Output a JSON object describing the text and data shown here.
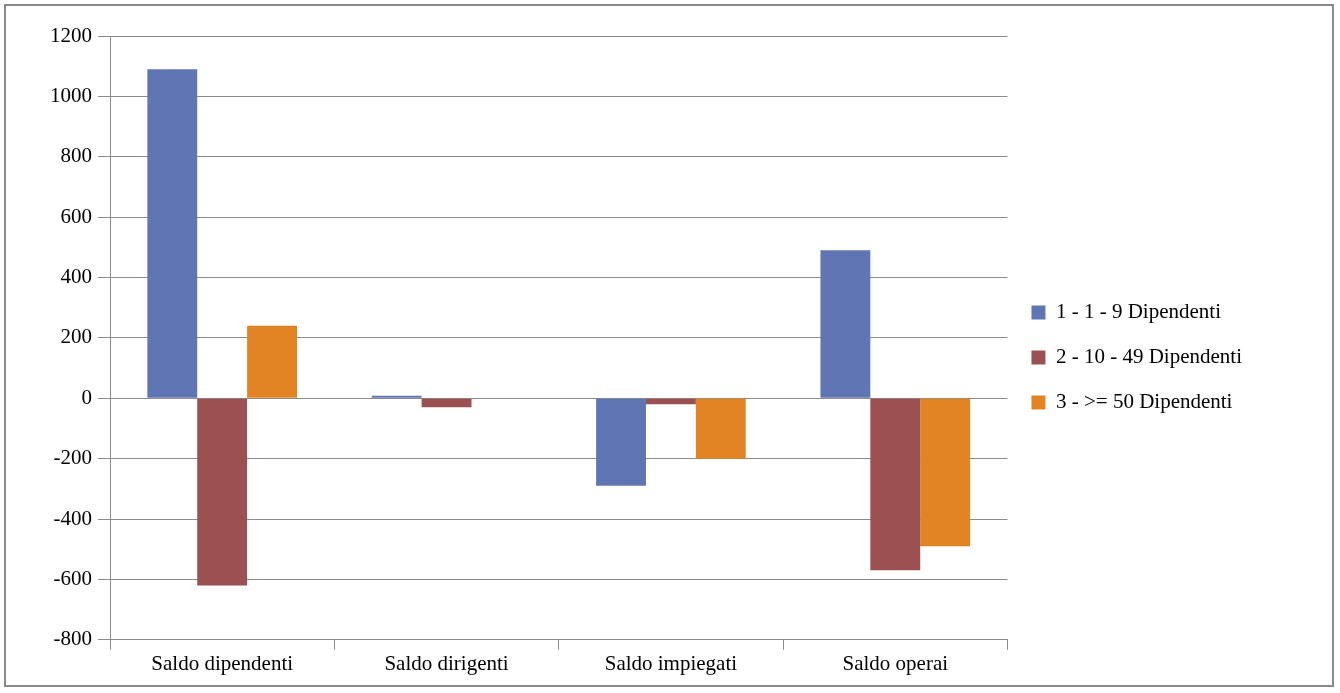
{
  "chart_data": {
    "type": "bar",
    "categories": [
      "Saldo dipendenti",
      "Saldo dirigenti",
      "Saldo impiegati",
      "Saldo operai"
    ],
    "series": [
      {
        "name": "1 - 1 - 9 Dipendenti",
        "color": "#6076b4",
        "values": [
          1090,
          8,
          -290,
          490
        ]
      },
      {
        "name": "2 - 10 - 49 Dipendenti",
        "color": "#9b5052",
        "values": [
          -620,
          -30,
          -20,
          -570
        ]
      },
      {
        "name": "3 - >= 50 Dipendenti",
        "color": "#e38424",
        "values": [
          240,
          0,
          -200,
          -490
        ]
      }
    ],
    "ylim": [
      -800,
      1200
    ],
    "yticks": [
      -800,
      -600,
      -400,
      -200,
      0,
      200,
      400,
      600,
      800,
      1000,
      1200
    ],
    "grid": "y",
    "legend": "right"
  }
}
